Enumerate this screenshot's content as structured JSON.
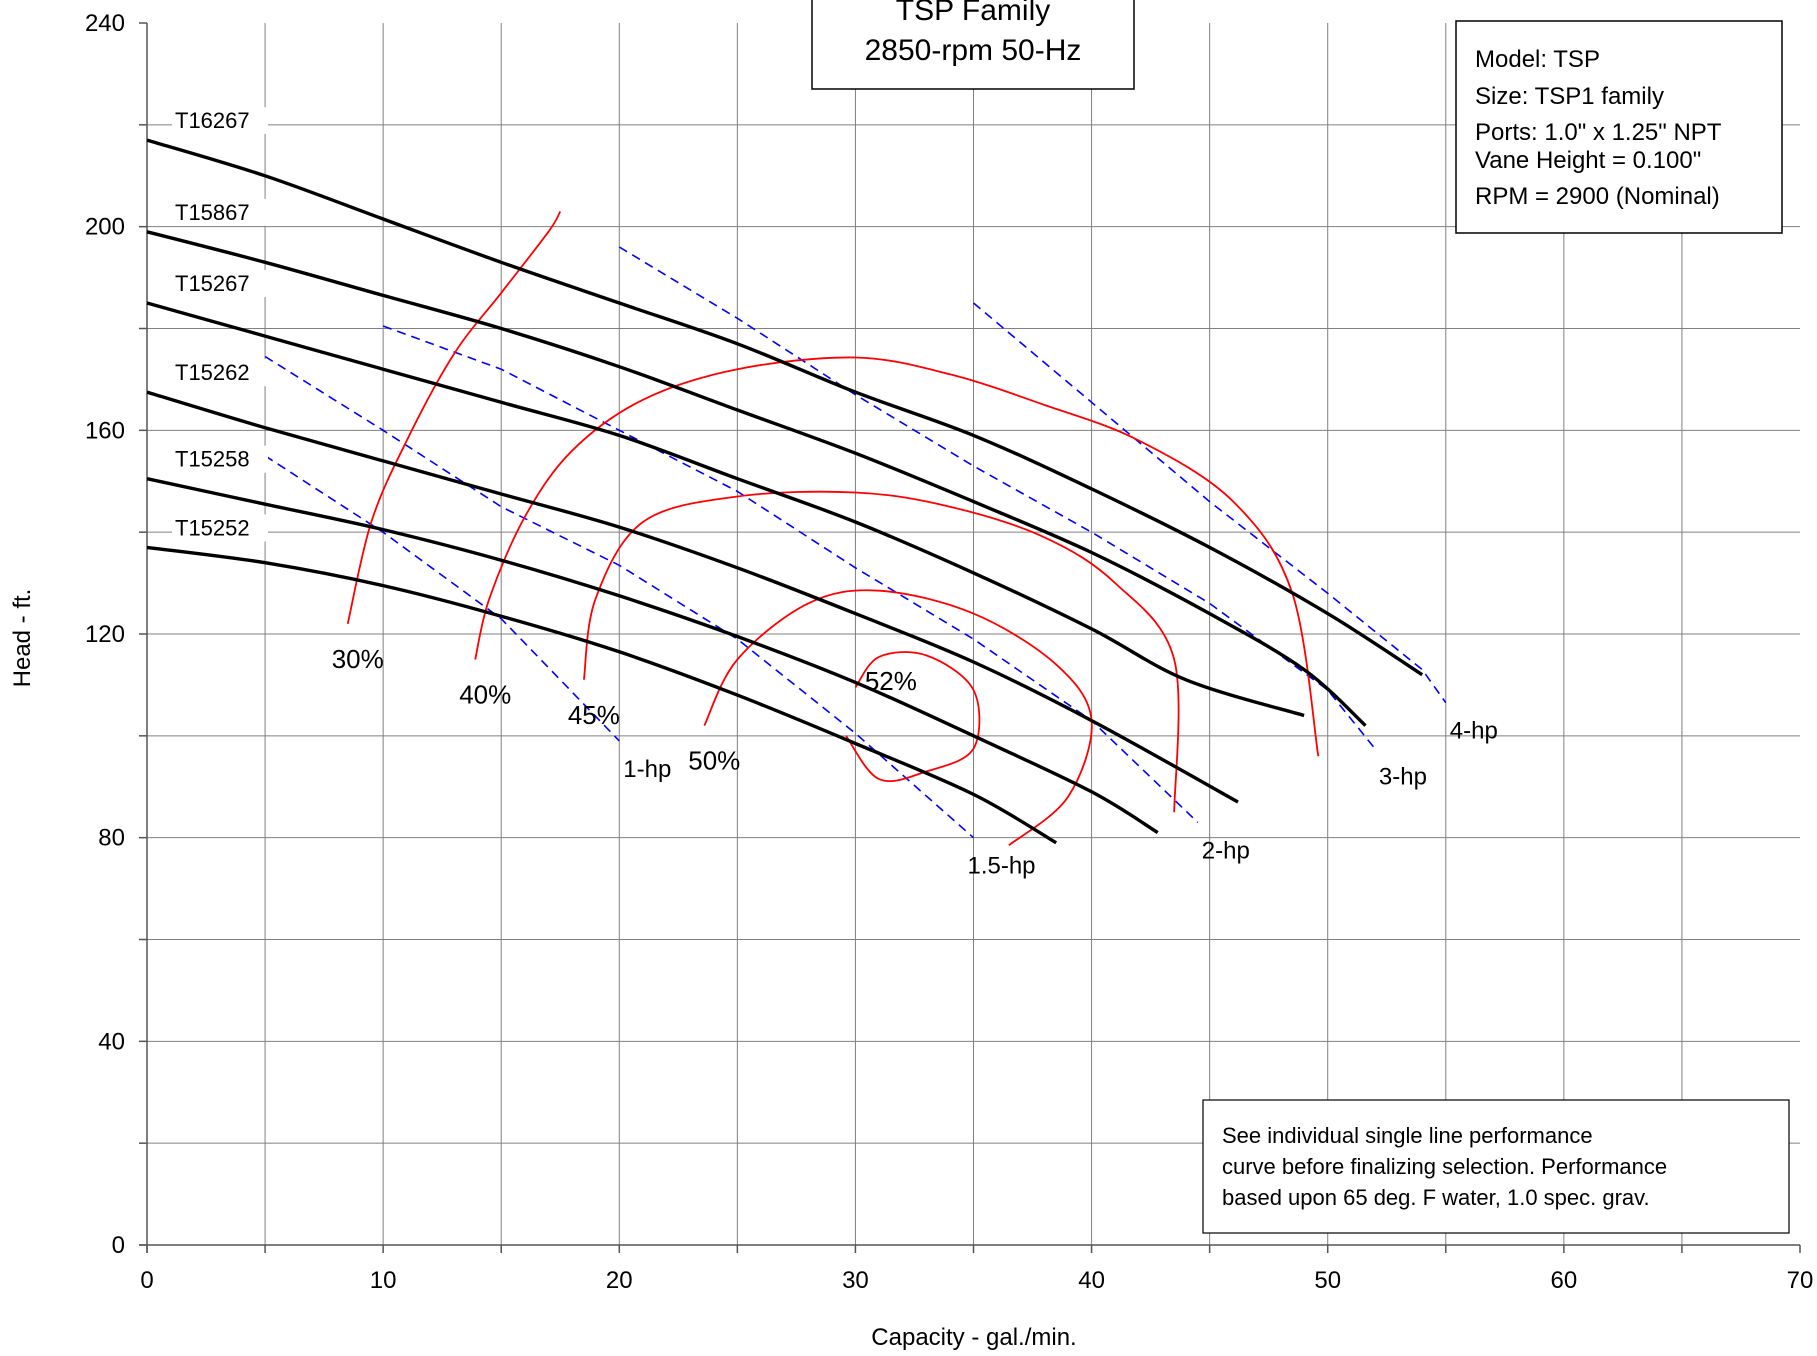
{
  "chart_data": {
    "type": "line",
    "title": [
      "TSP Family",
      "2850-rpm  50-Hz"
    ],
    "xlabel": "Capacity - gal./min.",
    "ylabel": "Head - ft.",
    "xlim": [
      0,
      70
    ],
    "ylim": [
      0,
      240
    ],
    "xticks": [
      0,
      10,
      20,
      30,
      40,
      50,
      60,
      70
    ],
    "yticks": [
      0,
      40,
      80,
      120,
      160,
      200,
      240
    ],
    "grid": true,
    "info_box": [
      "Model: TSP",
      "Size: TSP1 family",
      "Ports: 1.0\" x 1.25\" NPT",
      "Vane Height = 0.100\"",
      "RPM = 2900 (Nominal)"
    ],
    "note_box": [
      "See individual single line performance",
      "curve before finalizing selection. Performance",
      "based upon 65 deg. F water, 1.0 spec. grav."
    ],
    "colors": {
      "impeller": "#000000",
      "efficiency": "#ff0000",
      "horsepower": "#0000ff",
      "grid": "#808080"
    },
    "impeller_curves": [
      {
        "name": "T16267",
        "points": [
          [
            0,
            217
          ],
          [
            5,
            210
          ],
          [
            10,
            201.5
          ],
          [
            15,
            193
          ],
          [
            20,
            185
          ],
          [
            25,
            177
          ],
          [
            30,
            167.5
          ],
          [
            35,
            159
          ],
          [
            40,
            148.5
          ],
          [
            45,
            137
          ],
          [
            50,
            124
          ],
          [
            54,
            112
          ]
        ]
      },
      {
        "name": "T15867",
        "points": [
          [
            0,
            199
          ],
          [
            5,
            193
          ],
          [
            10,
            186.5
          ],
          [
            15,
            180
          ],
          [
            20,
            172.5
          ],
          [
            25,
            164
          ],
          [
            30,
            155.5
          ],
          [
            35,
            146
          ],
          [
            40,
            136
          ],
          [
            45,
            124
          ],
          [
            49,
            113
          ],
          [
            51.6,
            102
          ]
        ]
      },
      {
        "name": "T15267",
        "points": [
          [
            0,
            185
          ],
          [
            5,
            178.5
          ],
          [
            10,
            172
          ],
          [
            15,
            165.5
          ],
          [
            20,
            159
          ],
          [
            25,
            150.5
          ],
          [
            30,
            142
          ],
          [
            35,
            132
          ],
          [
            40,
            121
          ],
          [
            44,
            111
          ],
          [
            49,
            104
          ]
        ]
      },
      {
        "name": "T15262",
        "points": [
          [
            0,
            167.5
          ],
          [
            5,
            160.5
          ],
          [
            10,
            154
          ],
          [
            15,
            147.5
          ],
          [
            20,
            141
          ],
          [
            25,
            133
          ],
          [
            30,
            124
          ],
          [
            35,
            114.5
          ],
          [
            40,
            103
          ],
          [
            46.2,
            87
          ]
        ]
      },
      {
        "name": "T15258",
        "points": [
          [
            0,
            150.5
          ],
          [
            5,
            145.5
          ],
          [
            10,
            140.5
          ],
          [
            15,
            134.5
          ],
          [
            20,
            127.5
          ],
          [
            25,
            119.5
          ],
          [
            30,
            110.5
          ],
          [
            35,
            100
          ],
          [
            40,
            89
          ],
          [
            42.8,
            81
          ]
        ]
      },
      {
        "name": "T15252",
        "points": [
          [
            0,
            137
          ],
          [
            5,
            134
          ],
          [
            10,
            129.5
          ],
          [
            15,
            123.5
          ],
          [
            20,
            116.5
          ],
          [
            25,
            108
          ],
          [
            30,
            98.5
          ],
          [
            35,
            88.5
          ],
          [
            38.5,
            79
          ]
        ]
      }
    ],
    "efficiency_curves": [
      {
        "name": "30%",
        "points": [
          [
            8.5,
            122
          ],
          [
            9.5,
            142
          ],
          [
            11,
            158
          ],
          [
            13,
            175
          ],
          [
            15,
            187
          ],
          [
            17,
            199
          ],
          [
            17.5,
            203
          ]
        ]
      },
      {
        "name": "40%",
        "points": [
          [
            13.9,
            115
          ],
          [
            14.5,
            127
          ],
          [
            16,
            143
          ],
          [
            18,
            156
          ],
          [
            21,
            166
          ],
          [
            25,
            172
          ],
          [
            30,
            174.3
          ],
          [
            34,
            171
          ],
          [
            38,
            165
          ],
          [
            42,
            158
          ],
          [
            46,
            146
          ],
          [
            48.5,
            128
          ],
          [
            49.6,
            96
          ]
        ]
      },
      {
        "name": "45%",
        "points": [
          [
            18.5,
            111
          ],
          [
            19,
            127
          ],
          [
            21,
            142
          ],
          [
            25,
            147
          ],
          [
            30,
            147.8
          ],
          [
            34,
            145
          ],
          [
            38,
            139
          ],
          [
            41,
            130
          ],
          [
            43.5,
            115
          ],
          [
            43.5,
            85
          ]
        ]
      },
      {
        "name": "50%",
        "points": [
          [
            23.6,
            102
          ],
          [
            25,
            115
          ],
          [
            28,
            126
          ],
          [
            31,
            128.5
          ],
          [
            35,
            124
          ],
          [
            38.5,
            114
          ],
          [
            40,
            103
          ],
          [
            39,
            88
          ],
          [
            36.5,
            78.5
          ]
        ]
      },
      {
        "name": "52%",
        "points": [
          [
            30,
            109.5
          ],
          [
            31,
            115.5
          ],
          [
            33,
            115.8
          ],
          [
            35,
            109
          ],
          [
            35,
            97.5
          ],
          [
            33,
            93
          ],
          [
            31,
            91.5
          ],
          [
            29.6,
            100
          ]
        ]
      }
    ],
    "hp_lines": [
      {
        "name": "1-hp",
        "points": [
          [
            5,
            155
          ],
          [
            10,
            140
          ],
          [
            15,
            123
          ],
          [
            20,
            99
          ]
        ]
      },
      {
        "name": "1.5-hp",
        "points": [
          [
            5,
            174.5
          ],
          [
            10,
            160
          ],
          [
            15,
            145
          ],
          [
            20,
            133.5
          ],
          [
            25,
            119
          ],
          [
            30,
            100.5
          ],
          [
            35,
            80
          ]
        ]
      },
      {
        "name": "2-hp",
        "points": [
          [
            10,
            180.5
          ],
          [
            15,
            172
          ],
          [
            20,
            160
          ],
          [
            25,
            148
          ],
          [
            30,
            133
          ],
          [
            35,
            119
          ],
          [
            40,
            103
          ],
          [
            44.5,
            83
          ]
        ]
      },
      {
        "name": "3-hp",
        "points": [
          [
            20,
            196
          ],
          [
            25,
            182
          ],
          [
            30,
            167
          ],
          [
            35,
            153
          ],
          [
            40,
            140
          ],
          [
            45,
            126
          ],
          [
            50,
            109
          ],
          [
            52,
            97.5
          ]
        ]
      },
      {
        "name": "4-hp",
        "points": [
          [
            35,
            185
          ],
          [
            40,
            165.5
          ],
          [
            45,
            146
          ],
          [
            50,
            128
          ],
          [
            54,
            113
          ],
          [
            55,
            106.5
          ]
        ]
      }
    ]
  }
}
